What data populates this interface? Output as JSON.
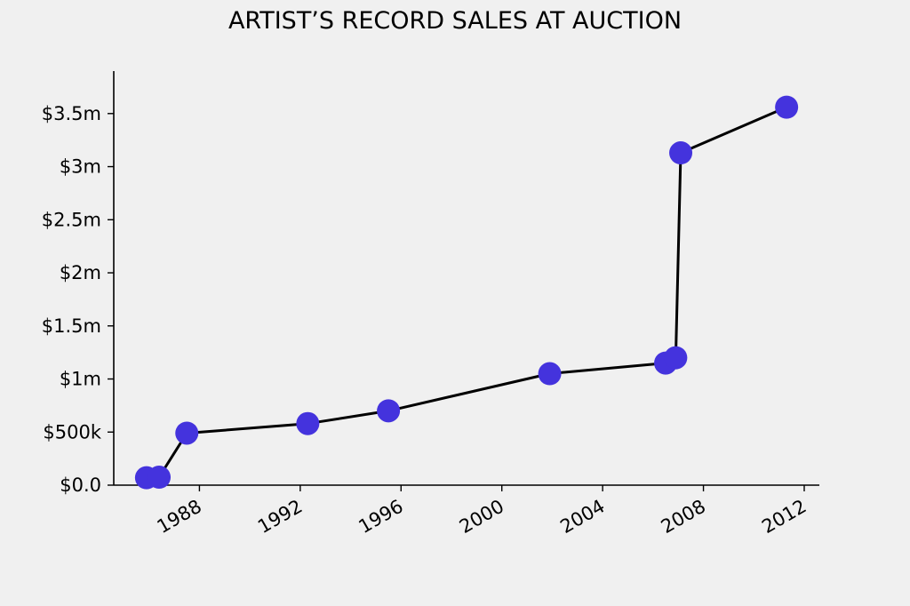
{
  "chart_data": {
    "type": "line",
    "title": "ARTIST’S RECORD SALES AT AUCTION",
    "xlabel": "",
    "ylabel": "",
    "x_ticks": [
      1988,
      1992,
      1996,
      2000,
      2004,
      2008,
      2012
    ],
    "y_ticks": [
      {
        "value": 0,
        "label": "$0.0"
      },
      {
        "value": 500000,
        "label": "$500k"
      },
      {
        "value": 1000000,
        "label": "$1m"
      },
      {
        "value": 1500000,
        "label": "$1.5m"
      },
      {
        "value": 2000000,
        "label": "$2m"
      },
      {
        "value": 2500000,
        "label": "$2.5m"
      },
      {
        "value": 3000000,
        "label": "$3m"
      },
      {
        "value": 3500000,
        "label": "$3.5m"
      }
    ],
    "xlim": [
      1984.6,
      2012.6
    ],
    "ylim": [
      0,
      3900000
    ],
    "grid": false,
    "series": [
      {
        "points": [
          {
            "x": 1985.9,
            "y": 70000
          },
          {
            "x": 1986.4,
            "y": 75000
          },
          {
            "x": 1987.5,
            "y": 490000
          },
          {
            "x": 1992.3,
            "y": 580000
          },
          {
            "x": 1995.5,
            "y": 700000
          },
          {
            "x": 2001.9,
            "y": 1050000
          },
          {
            "x": 2006.5,
            "y": 1150000
          },
          {
            "x": 2006.9,
            "y": 1200000
          },
          {
            "x": 2007.1,
            "y": 3130000
          },
          {
            "x": 2011.3,
            "y": 3560000
          }
        ]
      }
    ],
    "colors": {
      "marker": "#4433dd",
      "line": "#000000"
    }
  }
}
